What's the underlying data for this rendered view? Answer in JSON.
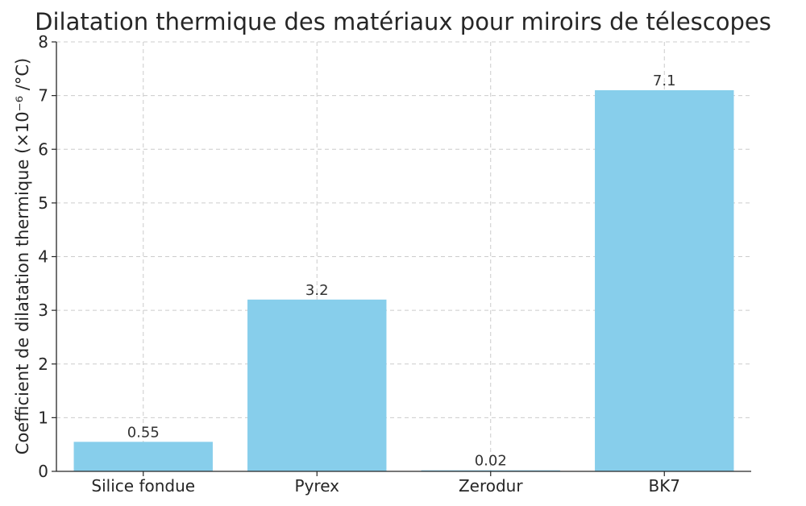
{
  "chart_data": {
    "type": "bar",
    "title": "Dilatation thermique des matériaux pour miroirs de télescopes",
    "xlabel": "",
    "ylabel": "Coefficient de dilatation thermique (×10⁻⁶ /°C)",
    "categories": [
      "Silice fondue",
      "Pyrex",
      "Zerodur",
      "BK7"
    ],
    "values": [
      0.55,
      3.2,
      0.02,
      7.1
    ],
    "value_labels": [
      "0.55",
      "3.2",
      "0.02",
      "7.1"
    ],
    "ylim": [
      0,
      8
    ],
    "yticks": [
      0,
      1,
      2,
      3,
      4,
      5,
      6,
      7,
      8
    ],
    "grid": true,
    "bar_color": "#87ceeb"
  }
}
